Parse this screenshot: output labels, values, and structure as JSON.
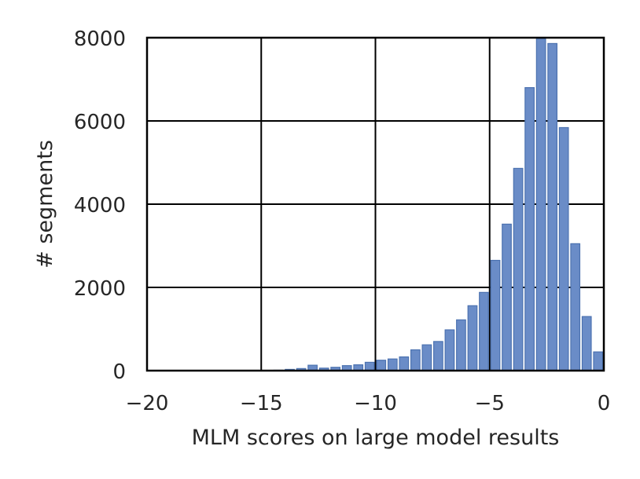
{
  "chart_data": {
    "type": "bar",
    "title": "",
    "xlabel": "MLM scores on large model results",
    "ylabel": "# segments",
    "xlim": [
      -20,
      0
    ],
    "ylim": [
      0,
      8000
    ],
    "x_ticks": [
      -20,
      -15,
      -10,
      -5,
      0
    ],
    "x_tick_labels": [
      "−20",
      "−15",
      "−10",
      "−5",
      "0"
    ],
    "y_ticks": [
      0,
      2000,
      4000,
      6000,
      8000
    ],
    "y_tick_labels": [
      "0",
      "2000",
      "4000",
      "6000",
      "8000"
    ],
    "grid": true,
    "legend": "none",
    "bar_color": "#6a8cc7",
    "bar_edge_color": "#4c72b0",
    "bin_width": 0.5,
    "bin_left_edges": [
      -14.5,
      -14.0,
      -13.5,
      -13.0,
      -12.5,
      -12.0,
      -11.5,
      -11.0,
      -10.5,
      -10.0,
      -9.5,
      -9.0,
      -8.5,
      -8.0,
      -7.5,
      -7.0,
      -6.5,
      -6.0,
      -5.5,
      -5.0,
      -4.5,
      -4.0,
      -3.5,
      -3.0,
      -2.5,
      -2.0,
      -1.5,
      -1.0,
      -0.5
    ],
    "values": [
      10,
      30,
      50,
      130,
      60,
      80,
      120,
      140,
      200,
      250,
      280,
      330,
      500,
      620,
      700,
      980,
      1220,
      1560,
      1880,
      2650,
      3520,
      4860,
      6800,
      7980,
      7860,
      5840,
      3050,
      1300,
      450
    ]
  }
}
